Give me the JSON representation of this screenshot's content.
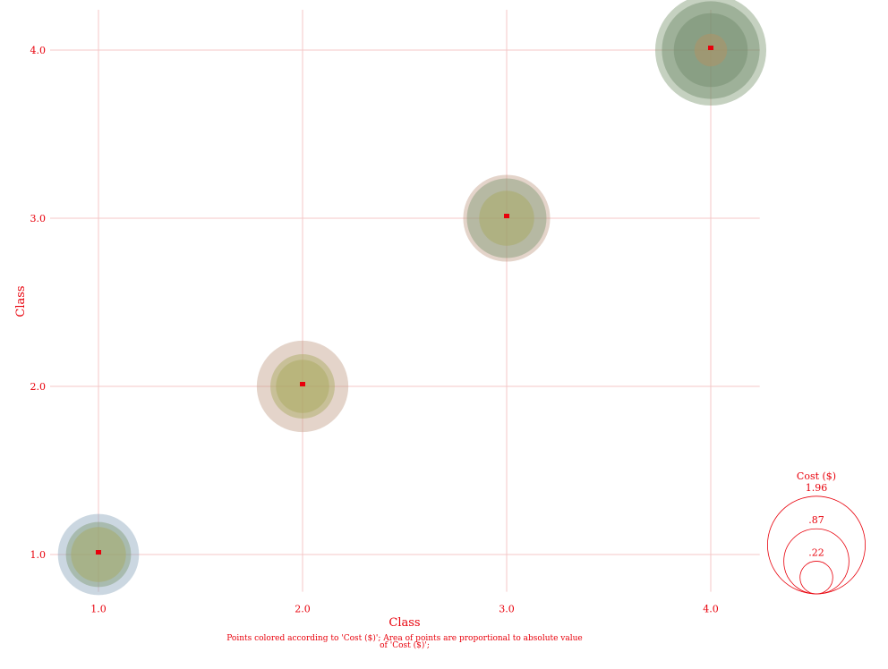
{
  "chart_data": {
    "type": "scatter",
    "xlabel": "Class",
    "ylabel": "Class",
    "xlim": [
      0.8,
      4.24
    ],
    "ylim": [
      0.8,
      4.24
    ],
    "x_ticks": [
      "1.0",
      "2.0",
      "3.0",
      "4.0"
    ],
    "y_ticks": [
      "1.0",
      "2.0",
      "3.0",
      "4.0"
    ],
    "grid": true,
    "colors": {
      "axis_text": "#e8000b",
      "grid": "#f4c7c7",
      "bubble_blue": "#8ba7bd",
      "bubble_brown": "#c4a08a",
      "bubble_green": "#7f9a74",
      "bubble_olive": "#a7a85c",
      "bubble_dark": "#6f8a6a",
      "bubble_orange": "#b89060"
    },
    "points": [
      {
        "x": 1,
        "y": 1,
        "size": 1.35,
        "color": "bubble_blue"
      },
      {
        "x": 1,
        "y": 1,
        "size": 0.87,
        "color": "bubble_green"
      },
      {
        "x": 1,
        "y": 1,
        "size": 0.62,
        "color": "bubble_olive"
      },
      {
        "x": 2,
        "y": 2,
        "size": 1.72,
        "color": "bubble_brown"
      },
      {
        "x": 2,
        "y": 2,
        "size": 0.85,
        "color": "bubble_olive"
      },
      {
        "x": 2,
        "y": 2,
        "size": 0.58,
        "color": "bubble_olive"
      },
      {
        "x": 3,
        "y": 3,
        "size": 1.55,
        "color": "bubble_brown"
      },
      {
        "x": 3,
        "y": 3,
        "size": 1.3,
        "color": "bubble_green"
      },
      {
        "x": 3,
        "y": 3,
        "size": 0.62,
        "color": "bubble_olive"
      },
      {
        "x": 4,
        "y": 4,
        "size": 2.53,
        "color": "bubble_green"
      },
      {
        "x": 4,
        "y": 4,
        "size": 1.96,
        "color": "bubble_dark"
      },
      {
        "x": 4,
        "y": 4,
        "size": 1.12,
        "color": "bubble_dark"
      },
      {
        "x": 4,
        "y": 4,
        "size": 0.22,
        "color": "bubble_orange"
      }
    ],
    "legend": {
      "title": "Cost ($)",
      "position": "bottom-right",
      "entries": [
        {
          "label": "1.96",
          "value": 1.96
        },
        {
          "label": ".87",
          "value": 0.87
        },
        {
          "label": ".22",
          "value": 0.22
        }
      ]
    },
    "caption": "Points colored according to 'Cost ($)'; Area of points are proportional to absolute value of 'Cost ($)';"
  }
}
